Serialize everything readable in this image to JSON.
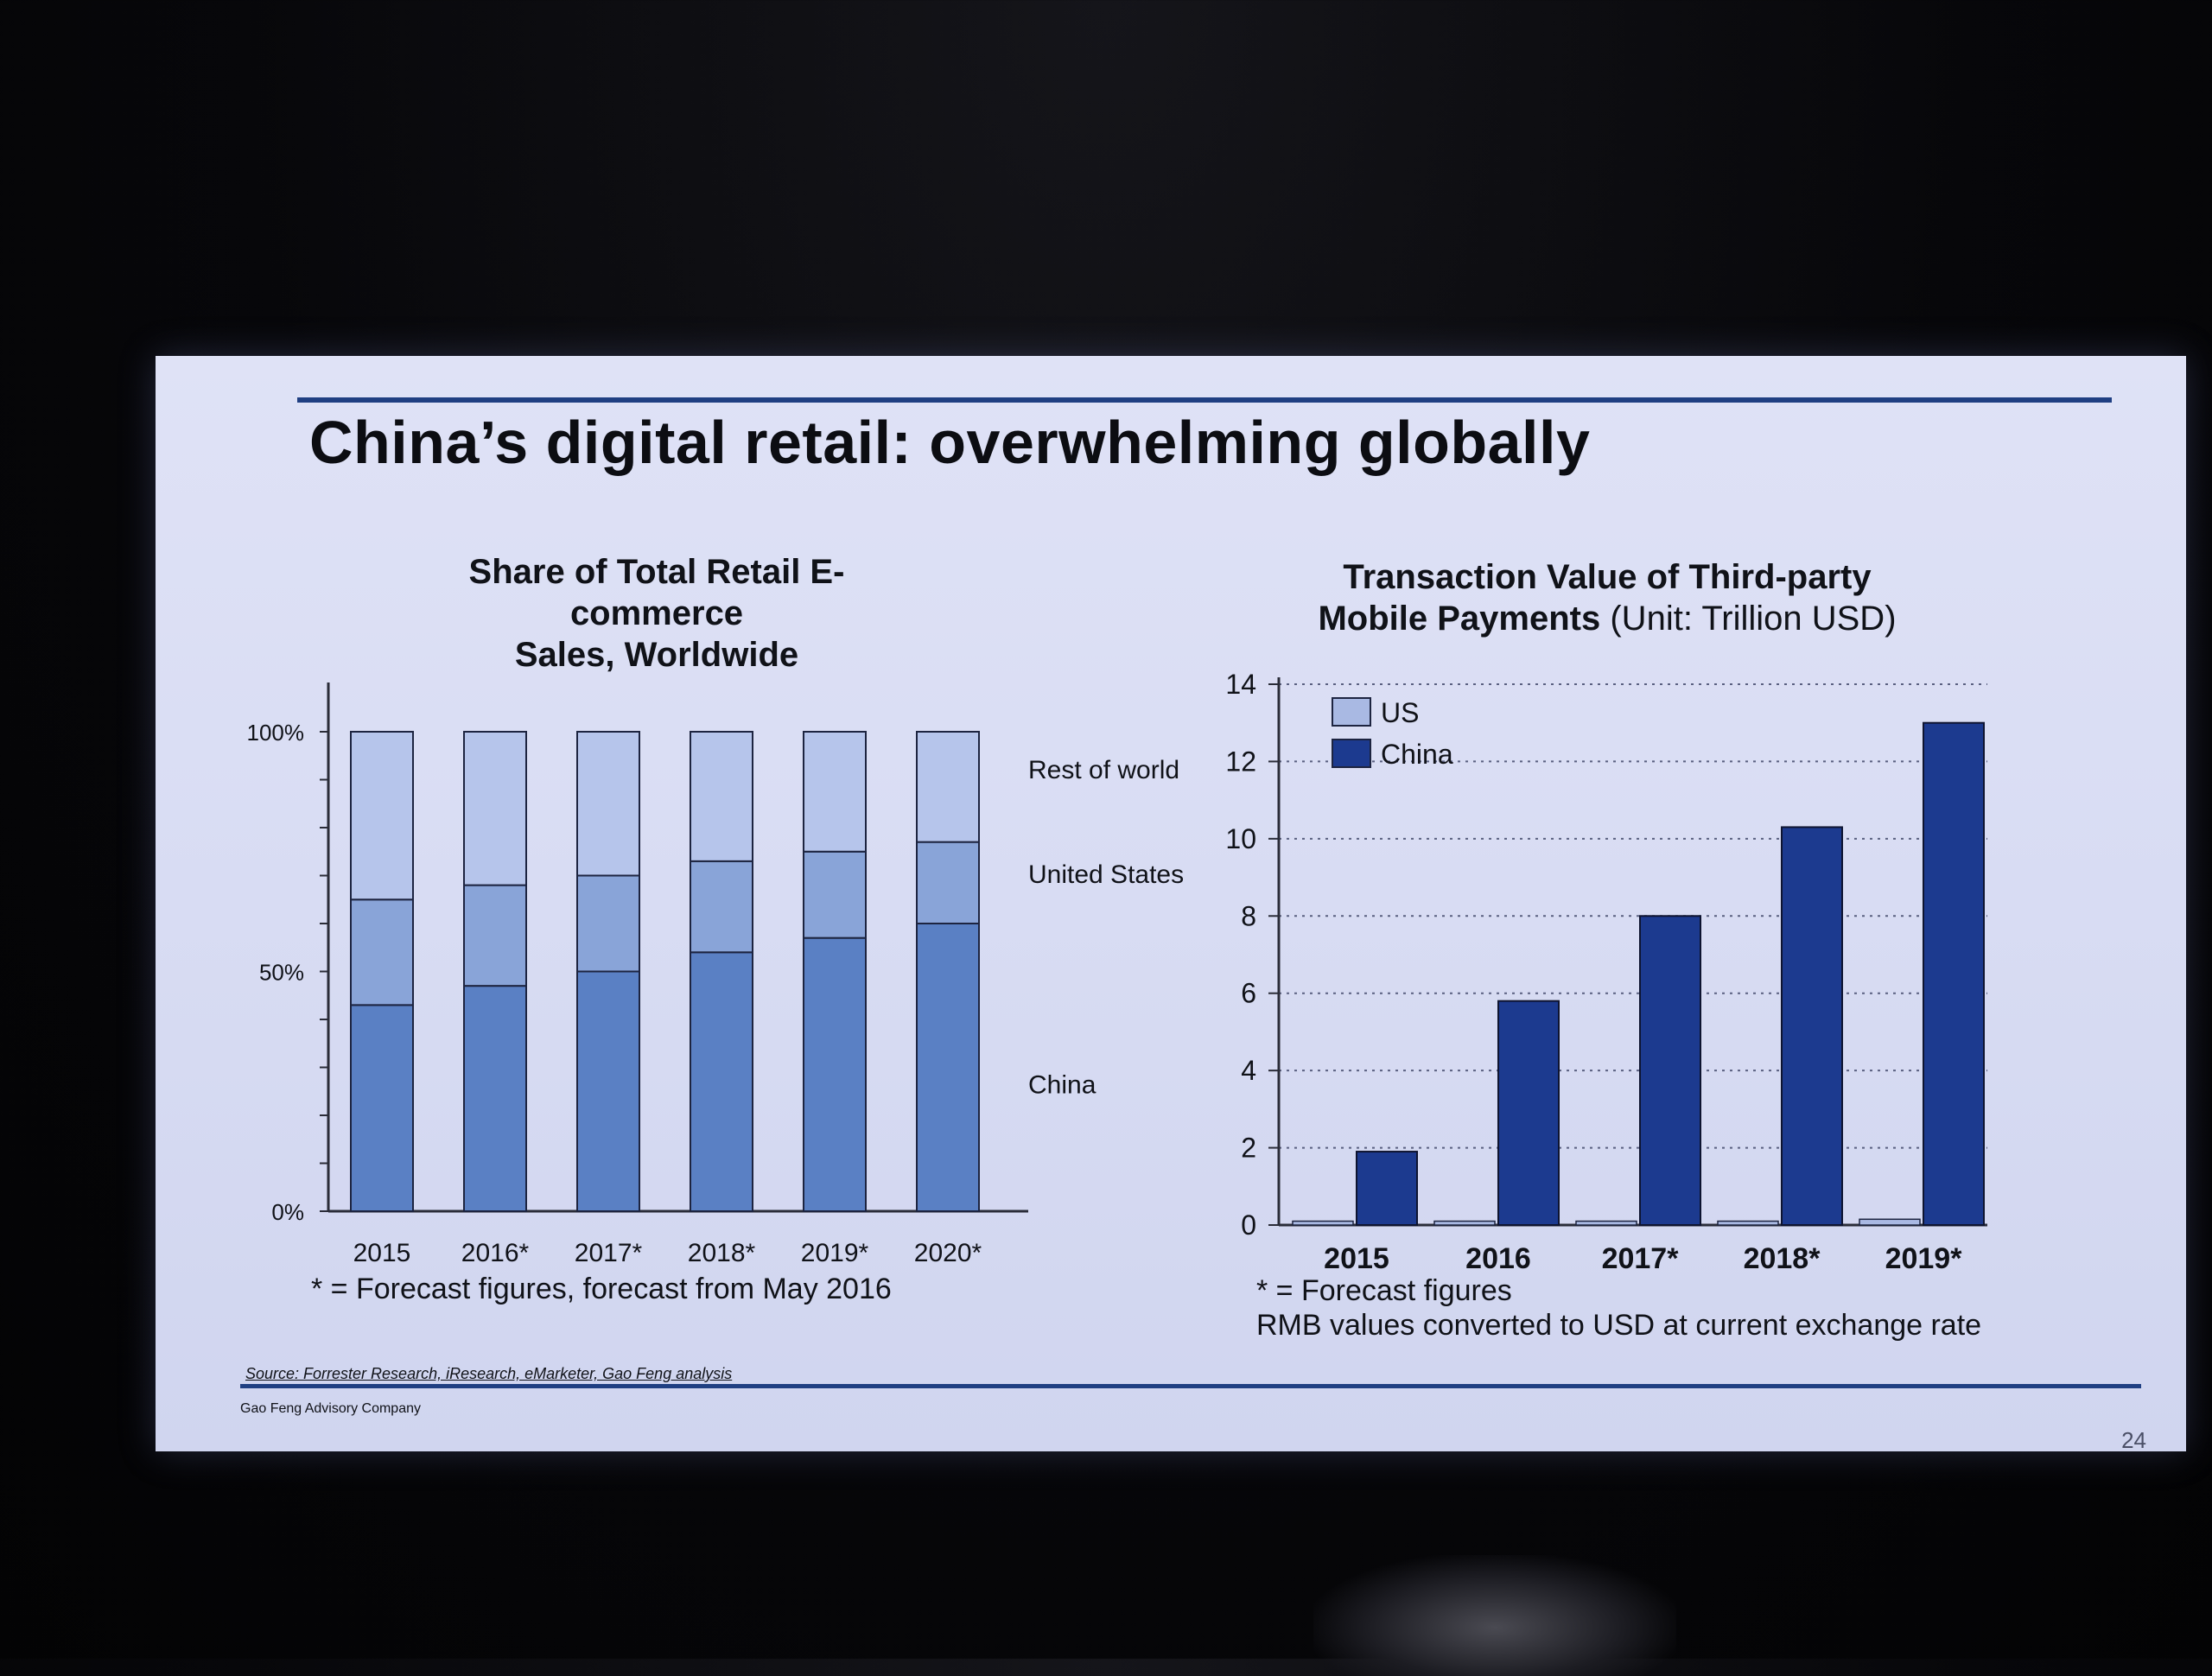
{
  "slide": {
    "title": "China’s digital retail: overwhelming globally",
    "source": "Source: Forrester Research, iResearch, eMarketer, Gao Feng analysis",
    "company": "Gao Feng Advisory Company",
    "page_number": "24"
  },
  "left_chart": {
    "subtitle_line1": "Share of Total Retail E-commerce",
    "subtitle_line2": "Sales, Worldwide",
    "footnote": "* = Forecast figures, forecast from May 2016"
  },
  "right_chart": {
    "subtitle_line1": "Transaction Value of Third-party",
    "subtitle_line2_bold": "Mobile Payments",
    "subtitle_unit": "(Unit: Trillion USD)",
    "footnote_line1": "* = Forecast figures",
    "footnote_line2": "RMB values converted to USD at current exchange rate"
  },
  "colors": {
    "china_share": "#5a80c4",
    "us_share": "#89a4d8",
    "rest_share": "#b6c5eb",
    "china_payments": "#1c3a8f",
    "us_payments": "#a9b9e3",
    "rule": "#1f3f82"
  },
  "chart_data": [
    {
      "type": "bar",
      "stacked": true,
      "title": "Share of Total Retail E-commerce Sales, Worldwide",
      "categories": [
        "2015",
        "2016*",
        "2017*",
        "2018*",
        "2019*",
        "2020*"
      ],
      "y_ticks": [
        "0%",
        "50%",
        "100%"
      ],
      "ylim": [
        0,
        100
      ],
      "series": [
        {
          "name": "China",
          "values": [
            43,
            47,
            50,
            54,
            57,
            60
          ]
        },
        {
          "name": "United States",
          "values": [
            22,
            21,
            20,
            19,
            18,
            17
          ]
        },
        {
          "name": "Rest of world",
          "values": [
            35,
            32,
            30,
            27,
            25,
            23
          ]
        }
      ],
      "legend": "right, inline labels"
    },
    {
      "type": "bar",
      "title": "Transaction Value of Third-party Mobile Payments (Unit: Trillion USD)",
      "categories": [
        "2015",
        "2016",
        "2017*",
        "2018*",
        "2019*"
      ],
      "y_ticks": [
        "0",
        "2",
        "4",
        "6",
        "8",
        "10",
        "12",
        "14"
      ],
      "ylim": [
        0,
        14
      ],
      "grid": true,
      "series": [
        {
          "name": "US",
          "values": [
            0.1,
            0.1,
            0.1,
            0.1,
            0.15
          ]
        },
        {
          "name": "China",
          "values": [
            1.9,
            5.8,
            8.0,
            10.3,
            13.0
          ]
        }
      ],
      "legend": "top-left"
    }
  ]
}
